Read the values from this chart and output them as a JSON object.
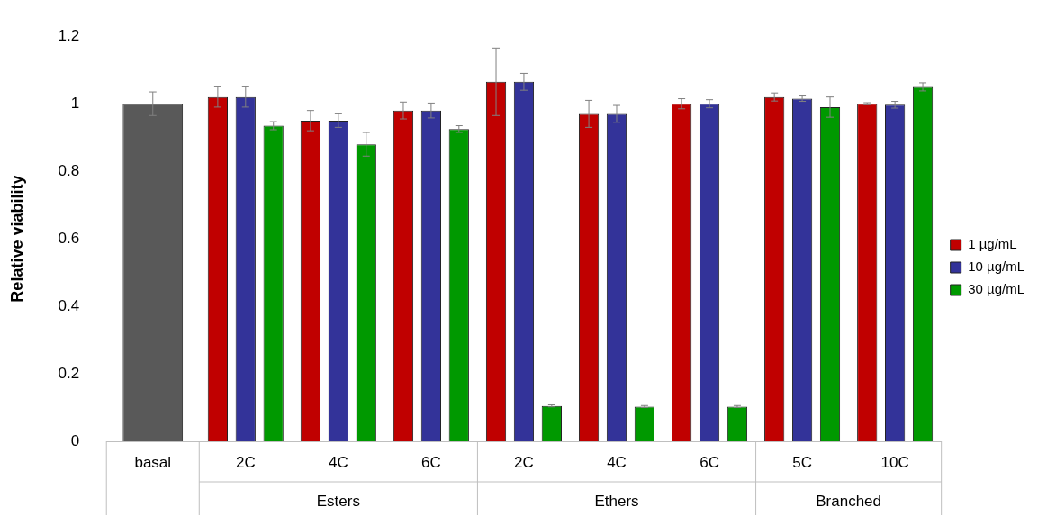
{
  "chart_data": {
    "type": "bar",
    "ylabel": "Relative viability",
    "categories": [
      "basal",
      "2C",
      "4C",
      "6C",
      "2C",
      "4C",
      "6C",
      "5C",
      "10C"
    ],
    "series": [
      {
        "color": "#595959",
        "values": [
          1.0,
          null,
          null,
          null,
          null,
          null,
          null,
          null,
          null
        ],
        "errors": [
          0.035,
          null,
          null,
          null,
          null,
          null,
          null,
          null,
          null
        ]
      },
      {
        "name": "1 µg/mL",
        "color": "#c00000",
        "values": [
          null,
          1.02,
          0.95,
          0.98,
          1.065,
          0.97,
          1.0,
          1.02,
          1.0
        ],
        "errors": [
          null,
          0.03,
          0.03,
          0.025,
          0.1,
          0.04,
          0.015,
          0.012,
          0.003
        ]
      },
      {
        "name": "10 µg/mL",
        "color": "#333399",
        "values": [
          null,
          1.02,
          0.95,
          0.98,
          1.065,
          0.97,
          1.0,
          1.015,
          0.997
        ],
        "errors": [
          null,
          0.03,
          0.02,
          0.022,
          0.025,
          0.025,
          0.012,
          0.008,
          0.01
        ]
      },
      {
        "name": "30 µg/mL",
        "color": "#009900",
        "values": [
          null,
          0.935,
          0.88,
          0.925,
          0.105,
          0.103,
          0.103,
          0.99,
          1.05
        ],
        "errors": [
          null,
          0.012,
          0.035,
          0.01,
          0.003,
          0.003,
          0.003,
          0.03,
          0.012
        ]
      }
    ],
    "annotations": [
      "Esters",
      "Ethers",
      "Branched"
    ],
    "ylim": [
      0,
      1.2
    ],
    "yticks": [
      0,
      0.2,
      0.4,
      0.6,
      0.8,
      1,
      1.2
    ],
    "grid": false,
    "legend": "right"
  }
}
